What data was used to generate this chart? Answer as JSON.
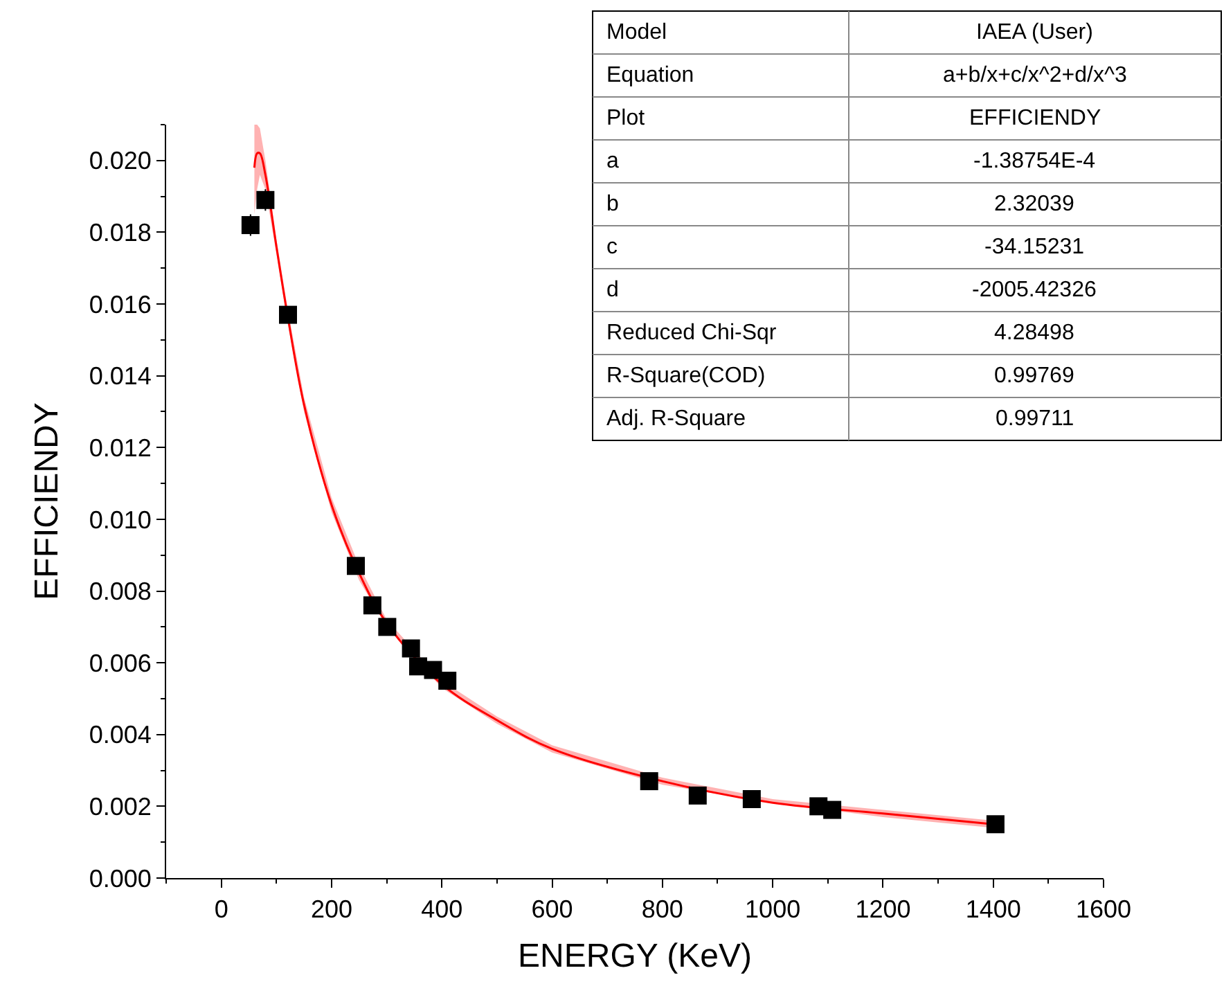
{
  "chart_data": {
    "type": "scatter",
    "xlabel": "ENERGY (KeV)",
    "ylabel": "EFFICIENDY",
    "xlim": [
      -100,
      1600
    ],
    "xticks": [
      0,
      200,
      400,
      600,
      800,
      1000,
      1200,
      1400,
      1600
    ],
    "ylim": [
      0,
      0.021
    ],
    "yticks": [
      {
        "value": 0,
        "label": "0.000"
      },
      {
        "value": 0.002,
        "label": "0.002"
      },
      {
        "value": 0.004,
        "label": "0.004"
      },
      {
        "value": 0.006,
        "label": "0.006"
      },
      {
        "value": 0.008,
        "label": "0.008"
      },
      {
        "value": 0.01,
        "label": "0.010"
      },
      {
        "value": 0.012,
        "label": "0.012"
      },
      {
        "value": 0.014,
        "label": "0.014"
      },
      {
        "value": 0.016,
        "label": "0.016"
      },
      {
        "value": 0.018,
        "label": "0.018"
      },
      {
        "value": 0.02,
        "label": "0.020"
      }
    ],
    "series": [
      {
        "color": "#000000",
        "marker": "square",
        "x": [
          53,
          80,
          121,
          244,
          274,
          301,
          344,
          357,
          384,
          410,
          776,
          864,
          962,
          1083,
          1108,
          1404
        ],
        "values": [
          0.0182,
          0.0189,
          0.0157,
          0.0087,
          0.0076,
          0.007,
          0.0064,
          0.0059,
          0.0058,
          0.0055,
          0.0027,
          0.0023,
          0.0022,
          0.002,
          0.0019,
          0.0015
        ],
        "errors": [
          0.0003,
          0.0003,
          null,
          null,
          null,
          null,
          null,
          null,
          null,
          null,
          null,
          null,
          null,
          null,
          null,
          null
        ]
      },
      {
        "type": "line",
        "color": "#ff0000",
        "marker": "none",
        "x": [
          60,
          65,
          70,
          80,
          100,
          120,
          150,
          200,
          250,
          300,
          400,
          500,
          600,
          800,
          1000,
          1200,
          1400
        ],
        "values": [
          0.0198,
          0.0202,
          0.0202,
          0.0196,
          0.0176,
          0.0157,
          0.0132,
          0.0104,
          0.0085,
          0.0071,
          0.0054,
          0.0044,
          0.0036,
          0.0027,
          0.0021,
          0.0018,
          0.0015
        ],
        "lower": [
          0.0185,
          0.0192,
          0.0196,
          0.0192,
          0.0174,
          0.0155,
          0.013,
          0.0102,
          0.0083,
          0.007,
          0.0053,
          0.0043,
          0.0035,
          0.0026,
          0.0021,
          0.0017,
          0.0014
        ],
        "upper": [
          0.021,
          0.021,
          0.0209,
          0.02,
          0.0178,
          0.0159,
          0.0134,
          0.0106,
          0.0087,
          0.0072,
          0.0055,
          0.0045,
          0.0037,
          0.0028,
          0.0022,
          0.0019,
          0.0016
        ]
      }
    ],
    "annotations": [
      "Model",
      "IAEA (User)",
      "Equation",
      "a+b/x+c/x^2+d/x^3",
      "Plot",
      "EFFICIENDY",
      "a",
      "-1.38754E-4",
      "b",
      "2.32039",
      "c",
      "-34.15231",
      "d",
      "-2005.42326",
      "Reduced Chi-Sqr",
      "4.28498",
      "R-Square(COD)",
      "0.99769",
      "Adj. R-Square",
      "0.99711"
    ]
  }
}
